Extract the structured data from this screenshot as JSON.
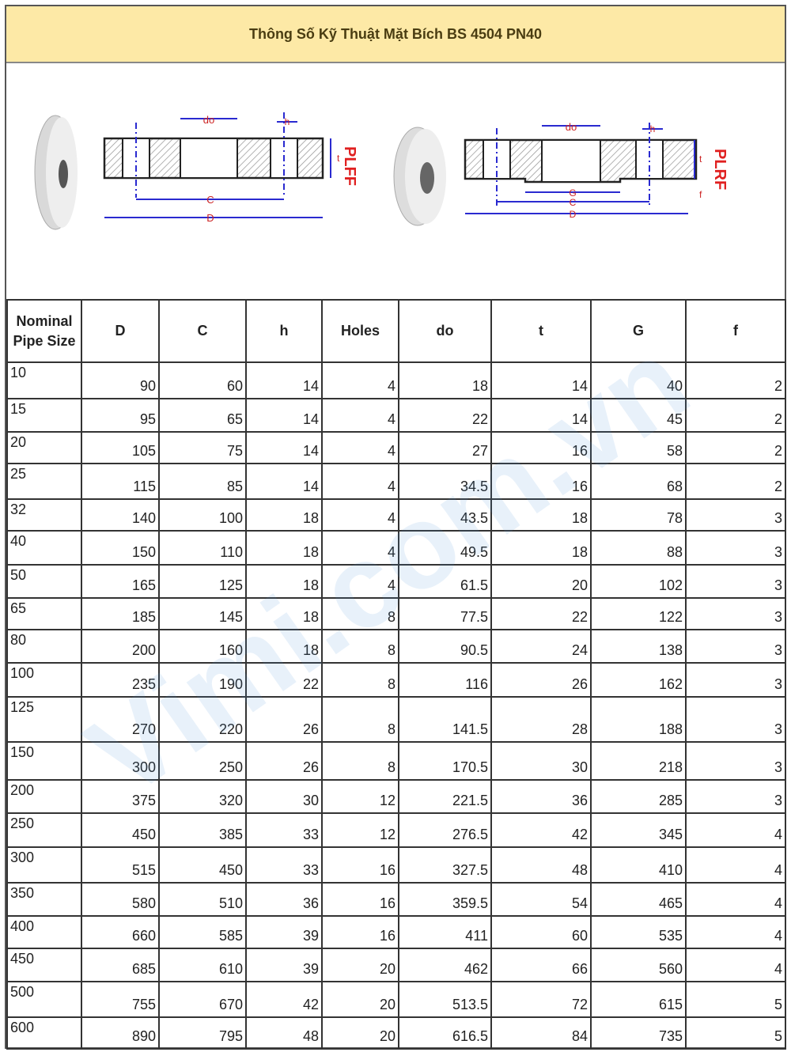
{
  "title": "Thông Số Kỹ Thuật Mặt Bích BS 4504 PN40",
  "diagram": {
    "left": {
      "type": "PLFF",
      "labels": {
        "do": "do",
        "h": "h",
        "t": "t",
        "c": "C",
        "d": "D"
      }
    },
    "right": {
      "type": "PLRF",
      "labels": {
        "do": "do",
        "h": "h",
        "t": "t",
        "f": "f",
        "g": "G",
        "c": "C",
        "d": "D"
      }
    },
    "dim_color": "#2a2ad0",
    "type_color": "#e02020"
  },
  "watermark": "Vimi.com.vn",
  "table": {
    "headers": [
      "Nominal Pipe Size",
      "D",
      "C",
      "h",
      "Holes",
      "do",
      "t",
      "G",
      "f"
    ],
    "rows": [
      [
        "10",
        "90",
        "60",
        "14",
        "4",
        "18",
        "14",
        "40",
        "2"
      ],
      [
        "15",
        "95",
        "65",
        "14",
        "4",
        "22",
        "14",
        "45",
        "2"
      ],
      [
        "20",
        "105",
        "75",
        "14",
        "4",
        "27",
        "16",
        "58",
        "2"
      ],
      [
        "25",
        "115",
        "85",
        "14",
        "4",
        "34.5",
        "16",
        "68",
        "2"
      ],
      [
        "32",
        "140",
        "100",
        "18",
        "4",
        "43.5",
        "18",
        "78",
        "3"
      ],
      [
        "40",
        "150",
        "110",
        "18",
        "4",
        "49.5",
        "18",
        "88",
        "3"
      ],
      [
        "50",
        "165",
        "125",
        "18",
        "4",
        "61.5",
        "20",
        "102",
        "3"
      ],
      [
        "65",
        "185",
        "145",
        "18",
        "8",
        "77.5",
        "22",
        "122",
        "3"
      ],
      [
        "80",
        "200",
        "160",
        "18",
        "8",
        "90.5",
        "24",
        "138",
        "3"
      ],
      [
        "100",
        "235",
        "190",
        "22",
        "8",
        "116",
        "26",
        "162",
        "3"
      ],
      [
        "125",
        "270",
        "220",
        "26",
        "8",
        "141.5",
        "28",
        "188",
        "3"
      ],
      [
        "150",
        "300",
        "250",
        "26",
        "8",
        "170.5",
        "30",
        "218",
        "3"
      ],
      [
        "200",
        "375",
        "320",
        "30",
        "12",
        "221.5",
        "36",
        "285",
        "3"
      ],
      [
        "250",
        "450",
        "385",
        "33",
        "12",
        "276.5",
        "42",
        "345",
        "4"
      ],
      [
        "300",
        "515",
        "450",
        "33",
        "16",
        "327.5",
        "48",
        "410",
        "4"
      ],
      [
        "350",
        "580",
        "510",
        "36",
        "16",
        "359.5",
        "54",
        "465",
        "4"
      ],
      [
        "400",
        "660",
        "585",
        "39",
        "16",
        "411",
        "60",
        "535",
        "4"
      ],
      [
        "450",
        "685",
        "610",
        "39",
        "20",
        "462",
        "66",
        "560",
        "4"
      ],
      [
        "500",
        "755",
        "670",
        "42",
        "20",
        "513.5",
        "72",
        "615",
        "5"
      ],
      [
        "600",
        "890",
        "795",
        "48",
        "20",
        "616.5",
        "84",
        "735",
        "5"
      ]
    ]
  }
}
